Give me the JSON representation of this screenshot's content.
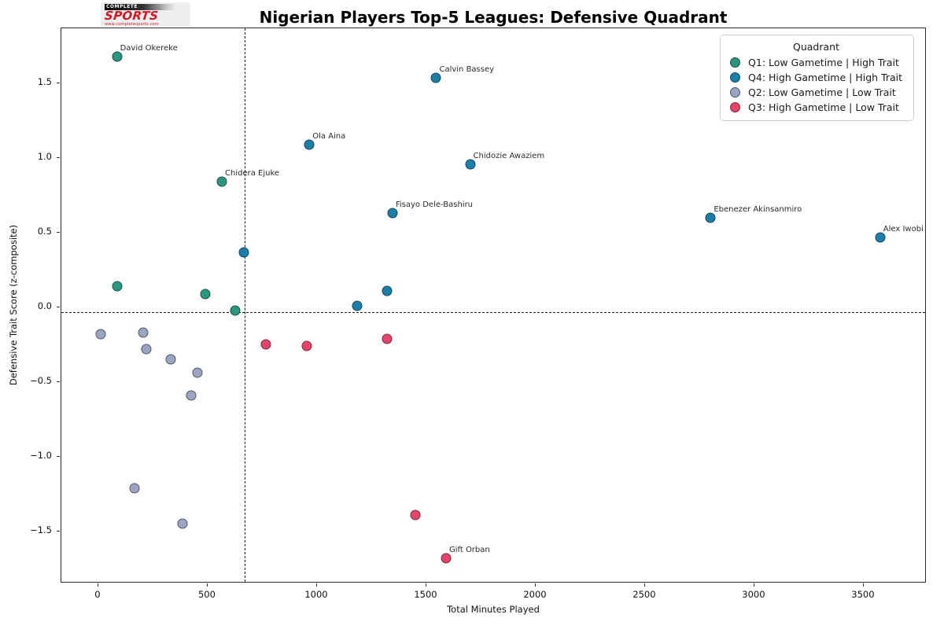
{
  "logo": {
    "top_text": "COMPLETE",
    "name": "SPORTS",
    "url": "www.completesports.com",
    "red": "#d8131f"
  },
  "title": "Nigerian Players Top-5 Leagues: Defensive Quadrant",
  "chart_data": {
    "type": "scatter",
    "title": "Nigerian Players Top-5 Leagues: Defensive Quadrant",
    "xlabel": "Total Minutes Played",
    "ylabel": "Defensive Trait Score (z-composite)",
    "xlim": [
      -169,
      3788
    ],
    "ylim": [
      -1.85,
      1.87
    ],
    "grid": false,
    "xticks": [
      {
        "label": "0",
        "value": 0
      },
      {
        "label": "500",
        "value": 500
      },
      {
        "label": "1000",
        "value": 1000
      },
      {
        "label": "1500",
        "value": 1500
      },
      {
        "label": "2000",
        "value": 2000
      },
      {
        "label": "2500",
        "value": 2500
      },
      {
        "label": "3000",
        "value": 3000
      },
      {
        "label": "3500",
        "value": 3500
      }
    ],
    "yticks": [
      {
        "label": "1.5",
        "value": 1.5
      },
      {
        "label": "1.0",
        "value": 1.0
      },
      {
        "label": "0.5",
        "value": 0.5
      },
      {
        "label": "0.0",
        "value": 0.0
      },
      {
        "label": "−0.5",
        "value": -0.5
      },
      {
        "label": "−1.0",
        "value": -1.0
      },
      {
        "label": "−1.5",
        "value": -1.5
      }
    ],
    "threshold_x": 668,
    "threshold_y": -0.03,
    "legend": {
      "title": "Quadrant",
      "position": "top-right"
    },
    "series": [
      {
        "name": "Q1: Low Gametime | High Trait",
        "color": "#2b967e",
        "points": [
          {
            "x": 85,
            "y": 1.68,
            "label": "David Okereke"
          },
          {
            "x": 86,
            "y": 0.14
          },
          {
            "x": 490,
            "y": 0.09
          },
          {
            "x": 565,
            "y": 0.84,
            "label": "Chidera Ejuke"
          },
          {
            "x": 625,
            "y": -0.02
          }
        ]
      },
      {
        "name": "Q4: High Gametime | High Trait",
        "color": "#1b7fa8",
        "points": [
          {
            "x": 665,
            "y": 0.37
          },
          {
            "x": 965,
            "y": 1.09,
            "label": "Ola Aina"
          },
          {
            "x": 1185,
            "y": 0.01
          },
          {
            "x": 1320,
            "y": 0.11
          },
          {
            "x": 1345,
            "y": 0.63,
            "label": "Fisayo Dele-Bashiru"
          },
          {
            "x": 1545,
            "y": 1.54,
            "label": "Calvin Bassey"
          },
          {
            "x": 1700,
            "y": 0.96,
            "label": "Chidozie Awaziem"
          },
          {
            "x": 2800,
            "y": 0.6,
            "label": "Ebenezer Akinsanmiro"
          },
          {
            "x": 3575,
            "y": 0.47,
            "label": "Alex Iwobi"
          }
        ]
      },
      {
        "name": "Q2: Low Gametime | Low Trait",
        "color": "#9aa5c1",
        "points": [
          {
            "x": 10,
            "y": -0.18
          },
          {
            "x": 205,
            "y": -0.17
          },
          {
            "x": 220,
            "y": -0.28
          },
          {
            "x": 330,
            "y": -0.35
          },
          {
            "x": 455,
            "y": -0.44
          },
          {
            "x": 425,
            "y": -0.59
          },
          {
            "x": 165,
            "y": -1.21
          },
          {
            "x": 385,
            "y": -1.45
          }
        ]
      },
      {
        "name": "Q3: High Gametime | Low Trait",
        "color": "#e8436b",
        "points": [
          {
            "x": 765,
            "y": -0.25
          },
          {
            "x": 955,
            "y": -0.26
          },
          {
            "x": 1320,
            "y": -0.21
          },
          {
            "x": 1450,
            "y": -1.39
          },
          {
            "x": 1590,
            "y": -1.68,
            "label": "Gift Orban"
          }
        ]
      }
    ]
  }
}
